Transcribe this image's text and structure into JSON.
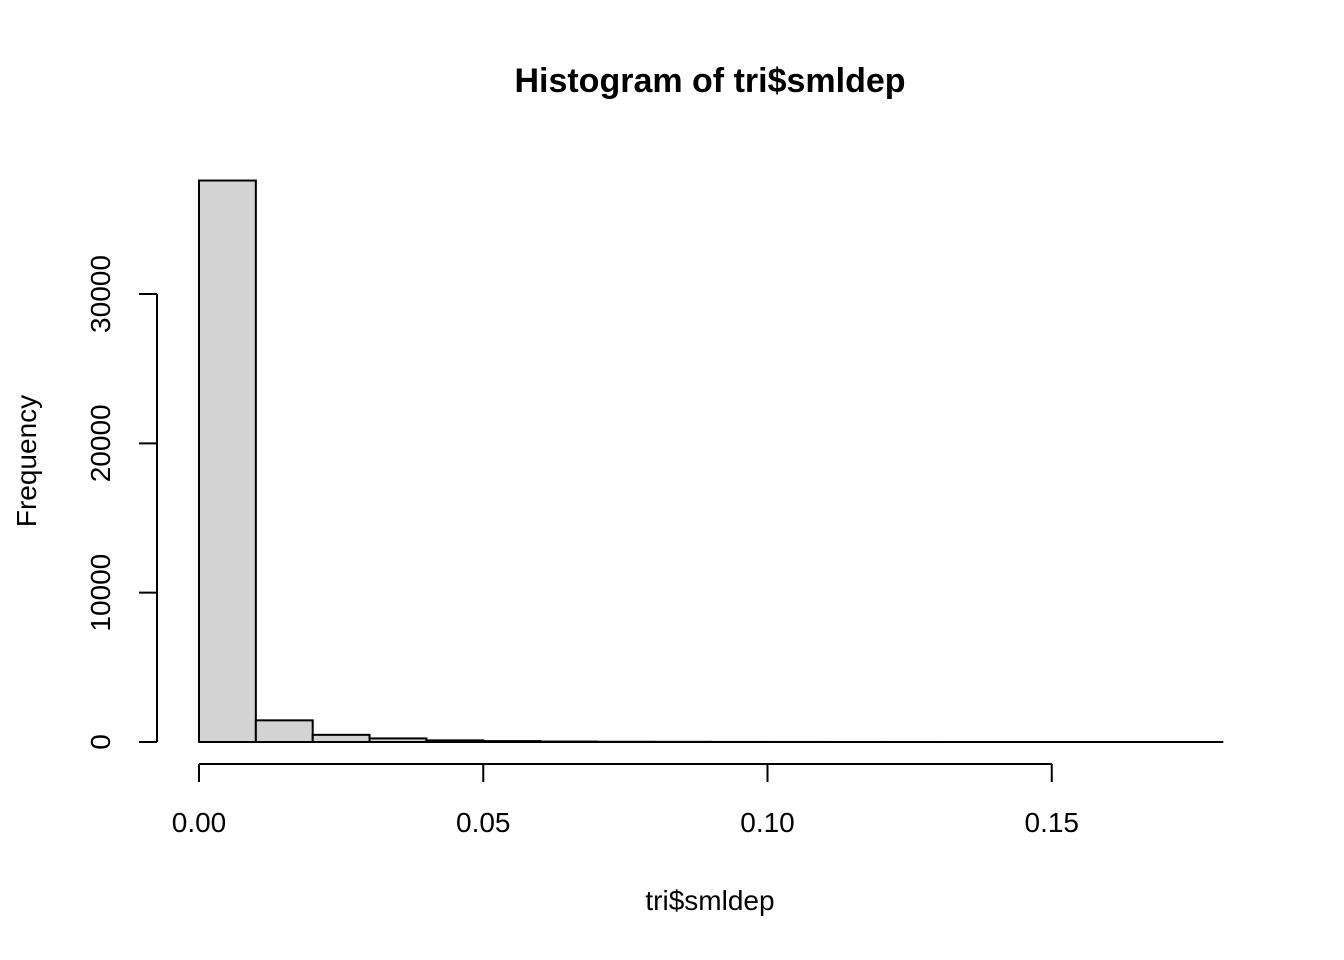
{
  "chart_data": {
    "type": "bar",
    "title": "Histogram of tri$smldep",
    "xlabel": "tri$smldep",
    "ylabel": "Frequency",
    "bin_width": 0.01,
    "bin_starts": [
      0.0,
      0.01,
      0.02,
      0.03,
      0.04,
      0.05,
      0.06,
      0.07,
      0.08,
      0.09,
      0.1,
      0.11,
      0.12,
      0.13,
      0.14,
      0.15,
      0.16,
      0.17
    ],
    "values": [
      37600,
      1450,
      480,
      240,
      110,
      60,
      30,
      15,
      10,
      5,
      3,
      2,
      2,
      1,
      1,
      1,
      1,
      1
    ],
    "xlim": [
      0.0,
      0.18
    ],
    "ylim": [
      0,
      37600
    ],
    "x_ticks": [
      0.0,
      0.05,
      0.1,
      0.15
    ],
    "x_tick_labels": [
      "0.00",
      "0.05",
      "0.10",
      "0.15"
    ],
    "y_ticks": [
      0,
      10000,
      20000,
      30000
    ],
    "y_tick_labels": [
      "0",
      "10000",
      "20000",
      "30000"
    ],
    "grid": false,
    "bar_fill": "#d3d3d3",
    "bar_stroke": "#000000"
  }
}
